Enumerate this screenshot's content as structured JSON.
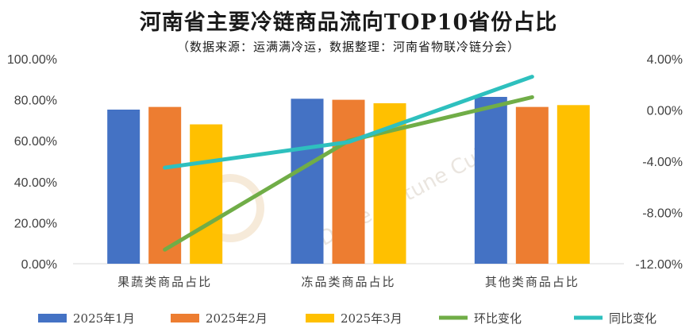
{
  "chart_data": {
    "type": "bar",
    "title": "河南省主要冷链商品流向TOP10省份占比",
    "subtitle": "（数据来源：运满满冷运，数据整理：河南省物联冷链分会）",
    "categories": [
      "果蔬类商品占比",
      "冻品类商品占比",
      "其他类商品占比"
    ],
    "series": [
      {
        "name": "2025年1月",
        "kind": "bar",
        "axis": "left",
        "color": "#4472C4",
        "values": [
          75.2,
          80.5,
          81.4
        ]
      },
      {
        "name": "2025年2月",
        "kind": "bar",
        "axis": "left",
        "color": "#ED7D31",
        "values": [
          76.5,
          80.0,
          76.5
        ]
      },
      {
        "name": "2025年3月",
        "kind": "bar",
        "axis": "left",
        "color": "#FFC000",
        "values": [
          68.0,
          78.3,
          77.4
        ]
      },
      {
        "name": "环比变化",
        "kind": "line",
        "axis": "right",
        "color": "#70AD47",
        "values": [
          -10.9,
          -2.4,
          1.0
        ]
      },
      {
        "name": "同比变化",
        "kind": "line",
        "axis": "right",
        "color": "#2EC0BE",
        "values": [
          -4.5,
          -2.5,
          2.6
        ]
      }
    ],
    "y_left": {
      "min": 0,
      "max": 100,
      "step": 20,
      "ticks": [
        "0.00%",
        "20.00%",
        "40.00%",
        "60.00%",
        "80.00%",
        "100.00%"
      ]
    },
    "y_right": {
      "min": -12,
      "max": 4,
      "step": 4,
      "ticks": [
        "-12.00%",
        "-8.00%",
        "-4.00%",
        "0.00%",
        "4.00%"
      ]
    },
    "grid": false,
    "legend_position": "bottom",
    "watermark": "DaHe Fortune Cube"
  }
}
